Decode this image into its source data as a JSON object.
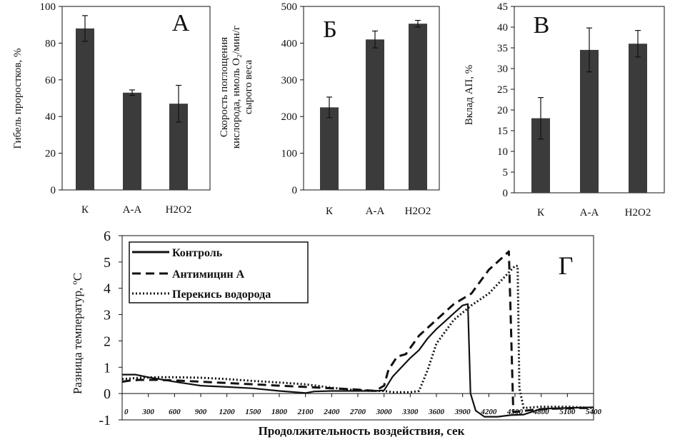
{
  "chart_data": [
    {
      "type": "bar",
      "panel": "А",
      "ylabel": "Гибель проростков, %",
      "categories": [
        "К",
        "А-А",
        "Н2О2"
      ],
      "values": [
        88,
        53,
        47
      ],
      "errors": [
        7,
        1.5,
        10
      ],
      "ylim": [
        0,
        100
      ],
      "yticks": [
        0,
        20,
        40,
        60,
        80,
        100
      ],
      "color": "#3b3b3b"
    },
    {
      "type": "bar",
      "panel": "Б",
      "ylabel": "Скорость поглощения кислорода, нмоль О2/мин/г сырого веса",
      "ylabel_lines": [
        "Скорость поглощения",
        "кислорода, нмоль О₂/мин/г",
        "сырого веса"
      ],
      "categories": [
        "К",
        "А-А",
        "Н2О2"
      ],
      "values": [
        225,
        410,
        453
      ],
      "errors": [
        28,
        23,
        9
      ],
      "ylim": [
        0,
        500
      ],
      "yticks": [
        0,
        100,
        200,
        300,
        400,
        500
      ],
      "color": "#3b3b3b"
    },
    {
      "type": "bar",
      "panel": "В",
      "ylabel": "Вклад АП, %",
      "categories": [
        "К",
        "А-А",
        "Н2О2"
      ],
      "values": [
        18,
        34.5,
        36
      ],
      "errors": [
        5,
        5.3,
        3.2
      ],
      "ylim": [
        0,
        45
      ],
      "yticks": [
        0,
        5,
        10,
        15,
        20,
        25,
        30,
        35,
        40,
        45
      ],
      "color": "#3b3b3b"
    },
    {
      "type": "line",
      "panel": "Г",
      "ylabel": "Разница температур, ºС",
      "xlabel": "Продолжительность воздействия, сек",
      "xlim": [
        0,
        5400
      ],
      "ylim": [
        -1,
        6
      ],
      "xticks": [
        0,
        300,
        600,
        900,
        1200,
        1500,
        1800,
        2100,
        2400,
        2700,
        3000,
        3300,
        3600,
        3900,
        4200,
        4500,
        4800,
        5100,
        5400
      ],
      "yticks": [
        -1,
        0,
        1,
        2,
        3,
        4,
        5,
        6
      ],
      "legend_position": "top-left",
      "series": [
        {
          "name": "Контроль",
          "style": "solid",
          "x": [
            0,
            150,
            300,
            600,
            900,
            1200,
            1500,
            1800,
            2100,
            2200,
            2400,
            2700,
            2900,
            3000,
            3100,
            3200,
            3300,
            3400,
            3500,
            3600,
            3700,
            3800,
            3900,
            3960,
            3990,
            4050,
            4150,
            4300,
            4450,
            4600,
            4800,
            5100,
            5400
          ],
          "y": [
            0.72,
            0.72,
            0.62,
            0.45,
            0.3,
            0.25,
            0.2,
            0.1,
            0.02,
            0.08,
            0.1,
            0.1,
            0.1,
            0.12,
            0.65,
            1.0,
            1.35,
            1.65,
            2.1,
            2.45,
            2.75,
            3.05,
            3.35,
            3.4,
            0.0,
            -0.65,
            -0.88,
            -0.88,
            -0.82,
            -0.8,
            -0.58,
            -0.55,
            -0.52
          ]
        },
        {
          "name": "Антимицин А",
          "style": "dashed",
          "x": [
            0,
            100,
            200,
            400,
            600,
            900,
            1200,
            1500,
            1800,
            2100,
            2400,
            2700,
            2900,
            3000,
            3050,
            3150,
            3250,
            3400,
            3600,
            3800,
            4000,
            4200,
            4350,
            4430,
            4450,
            4480,
            4550,
            4700,
            4900,
            5200,
            5400
          ],
          "y": [
            0.45,
            0.5,
            0.52,
            0.52,
            0.5,
            0.45,
            0.4,
            0.35,
            0.3,
            0.25,
            0.2,
            0.15,
            0.1,
            0.3,
            0.9,
            1.4,
            1.5,
            2.2,
            2.8,
            3.4,
            3.8,
            4.7,
            5.15,
            5.4,
            3.0,
            -0.7,
            -0.68,
            -0.62,
            -0.58,
            -0.55,
            -0.55
          ]
        },
        {
          "name": "Перекись водорода",
          "style": "dotted",
          "x": [
            0,
            200,
            400,
            600,
            900,
            1200,
            1500,
            1800,
            2100,
            2400,
            2700,
            2900,
            3000,
            3100,
            3300,
            3400,
            3500,
            3600,
            3800,
            4000,
            4200,
            4400,
            4500,
            4530,
            4550,
            4600,
            4800,
            5100,
            5400
          ],
          "y": [
            0.55,
            0.6,
            0.62,
            0.62,
            0.6,
            0.55,
            0.48,
            0.42,
            0.35,
            0.22,
            0.12,
            0.1,
            0.1,
            0.05,
            0.05,
            0.1,
            0.9,
            1.9,
            2.8,
            3.35,
            3.8,
            4.5,
            4.85,
            4.85,
            0.2,
            -0.55,
            -0.5,
            -0.5,
            -0.55
          ]
        }
      ]
    }
  ]
}
